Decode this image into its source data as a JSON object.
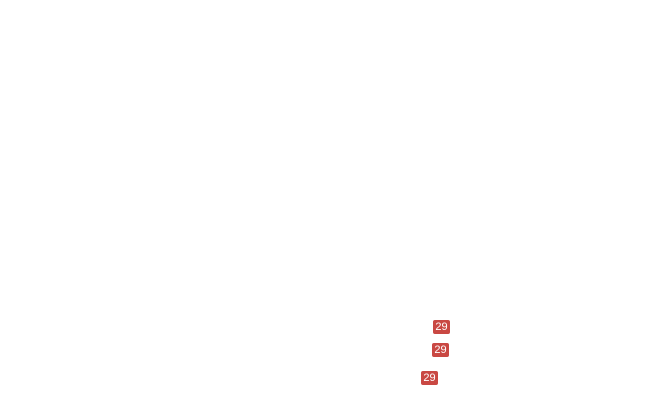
{
  "page": {
    "background": "#FFFFFF"
  },
  "colors": {
    "badge_bg": "#C94843",
    "badge_text": "#FFFFFF"
  },
  "badges": [
    {
      "label": "29"
    },
    {
      "label": "29"
    },
    {
      "label": "29"
    }
  ]
}
